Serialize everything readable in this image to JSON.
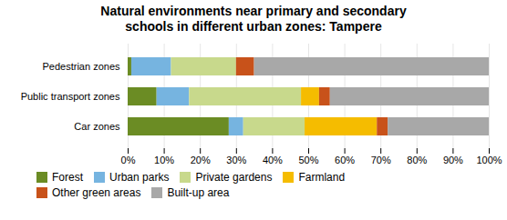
{
  "chart_data": {
    "type": "bar",
    "orientation": "horizontal",
    "stacked": true,
    "title": "Natural environments near primary and secondary\nschools in different urban zones: Tampere",
    "categories": [
      "Pedestrian zones",
      "Public transport zones",
      "Car zones"
    ],
    "series": [
      {
        "name": "Forest",
        "color": "#6b8c24",
        "values": [
          1,
          8,
          28
        ]
      },
      {
        "name": "Urban parks",
        "color": "#76b4e0",
        "values": [
          11,
          9,
          4
        ]
      },
      {
        "name": "Private gardens",
        "color": "#c8d98c",
        "values": [
          18,
          31,
          17
        ]
      },
      {
        "name": "Farmland",
        "color": "#f5bc00",
        "values": [
          0,
          5,
          20
        ]
      },
      {
        "name": "Other green areas",
        "color": "#c8521a",
        "values": [
          5,
          3,
          3
        ]
      },
      {
        "name": "Built-up area",
        "color": "#a8a8a8",
        "values": [
          65,
          44,
          28
        ]
      }
    ],
    "xlim": [
      0,
      100
    ],
    "xticks": [
      {
        "value": 0,
        "label": "0%"
      },
      {
        "value": 10,
        "label": "10%"
      },
      {
        "value": 20,
        "label": "20%"
      },
      {
        "value": 30,
        "label": "30%"
      },
      {
        "value": 40,
        "label": "40%"
      },
      {
        "value": 50,
        "label": "50%"
      },
      {
        "value": 60,
        "label": "60%"
      },
      {
        "value": 70,
        "label": "70%"
      },
      {
        "value": 80,
        "label": "80%"
      },
      {
        "value": 90,
        "label": "90%"
      },
      {
        "value": 100,
        "label": "100%"
      }
    ],
    "grid": true,
    "legend": "bottom"
  }
}
